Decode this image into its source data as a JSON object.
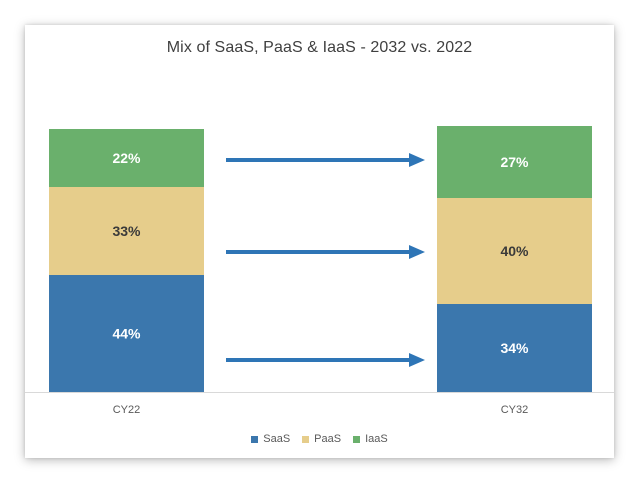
{
  "chart_data": {
    "type": "bar",
    "stacked": true,
    "title": "Mix of SaaS, PaaS & IaaS  - 2032 vs. 2022",
    "categories": [
      "CY22",
      "CY32"
    ],
    "series": [
      {
        "name": "SaaS",
        "color": "#3b77ad",
        "values": [
          44,
          34
        ],
        "labels": [
          "44%",
          "34%"
        ],
        "label_color": "#ffffff"
      },
      {
        "name": "PaaS",
        "color": "#e6cd8b",
        "values": [
          33,
          40
        ],
        "labels": [
          "33%",
          "40%"
        ],
        "label_color": "#3a3a3a"
      },
      {
        "name": "IaaS",
        "color": "#6ab06c",
        "values": [
          22,
          27
        ],
        "labels": [
          "22%",
          "27%"
        ],
        "label_color": "#ffffff"
      }
    ],
    "xlabel": "",
    "ylabel": "",
    "grid": false,
    "legend": "bottom",
    "arrow_color": "#2e75b6",
    "arrows": [
      "SaaS",
      "PaaS",
      "IaaS"
    ]
  }
}
